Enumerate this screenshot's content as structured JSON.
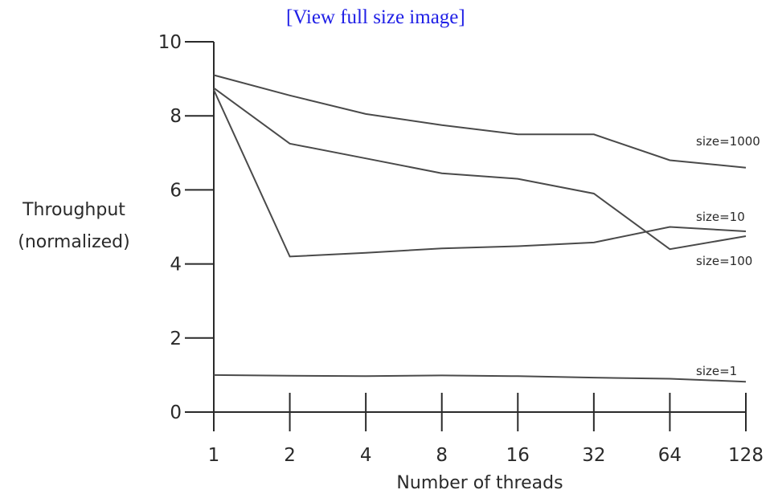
{
  "link": {
    "text": "[View full size image]"
  },
  "chart_data": {
    "type": "line",
    "title": "",
    "xlabel": "Number of threads",
    "ylabel": "Throughput (normalized)",
    "categories": [
      "1",
      "2",
      "4",
      "8",
      "16",
      "32",
      "64",
      "128"
    ],
    "ylim": [
      0,
      10
    ],
    "yticks": [
      0,
      2,
      4,
      6,
      8,
      10
    ],
    "grid": false,
    "series": [
      {
        "name": "size=1000",
        "values": [
          9.1,
          8.55,
          8.05,
          7.75,
          7.5,
          7.5,
          6.8,
          6.6
        ]
      },
      {
        "name": "size=100",
        "values": [
          8.75,
          7.25,
          6.85,
          6.45,
          6.3,
          5.9,
          4.4,
          4.75
        ]
      },
      {
        "name": "size=10",
        "values": [
          8.7,
          4.2,
          4.3,
          4.42,
          4.48,
          4.58,
          5.0,
          4.88
        ]
      },
      {
        "name": "size=1",
        "values": [
          1.0,
          0.98,
          0.97,
          0.99,
          0.97,
          0.93,
          0.9,
          0.82
        ]
      }
    ],
    "colors": {
      "line": "#4a4a4a",
      "axis": "#2a2a2a",
      "link": "#1f1fe6"
    }
  }
}
